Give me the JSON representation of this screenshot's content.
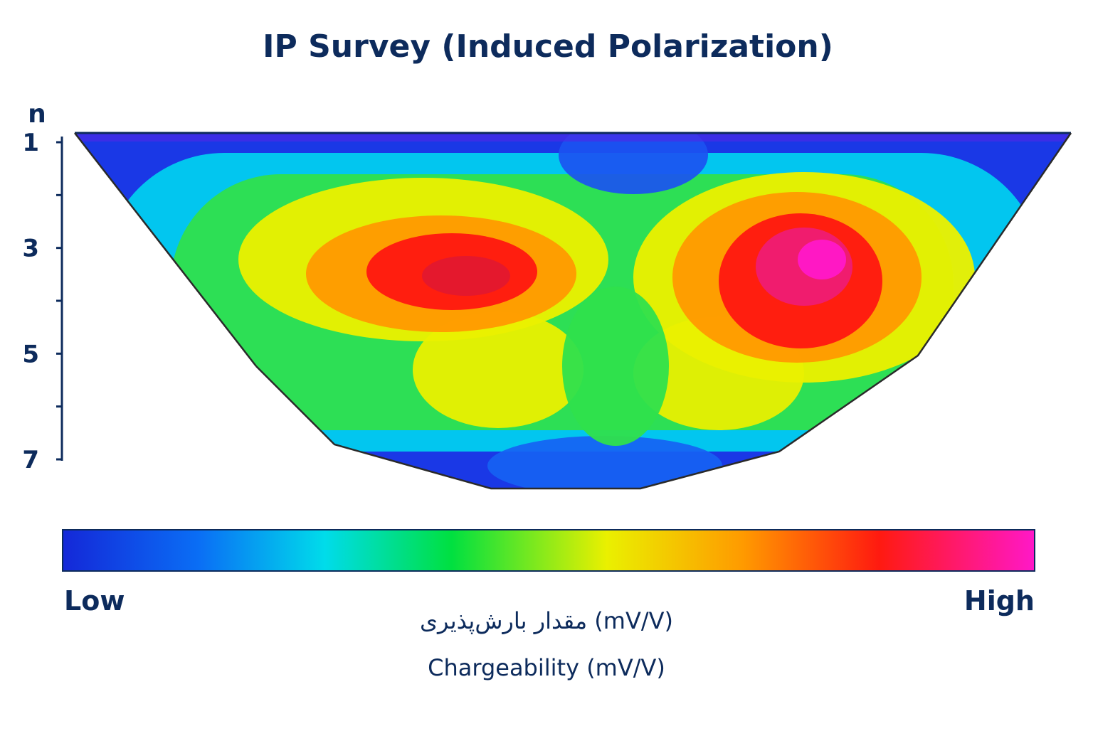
{
  "chart_data": {
    "type": "heatmap",
    "title": "IP Survey (Induced Polarization)",
    "ylabel": "n",
    "yticks": [
      "1",
      "3",
      "5",
      "7"
    ],
    "ylim": [
      1,
      7
    ],
    "yaxis_inverted": true,
    "colorbar": {
      "low_label": "Low",
      "high_label": "High",
      "unit_label_persian": "مقدار بارش‌پذیری (mV/V)",
      "unit_label_english": "Chargeability (mV/V)",
      "colors": [
        "#1428d8",
        "#0a6ef5",
        "#00dcea",
        "#00e040",
        "#eaf000",
        "#ff9a00",
        "#ff1a10",
        "#ff18c8"
      ]
    },
    "anomalies": [
      {
        "name": "left-high",
        "level": 0.82
      },
      {
        "name": "right-high",
        "level": 1.0
      },
      {
        "name": "center-low",
        "level": 0.42
      }
    ]
  }
}
